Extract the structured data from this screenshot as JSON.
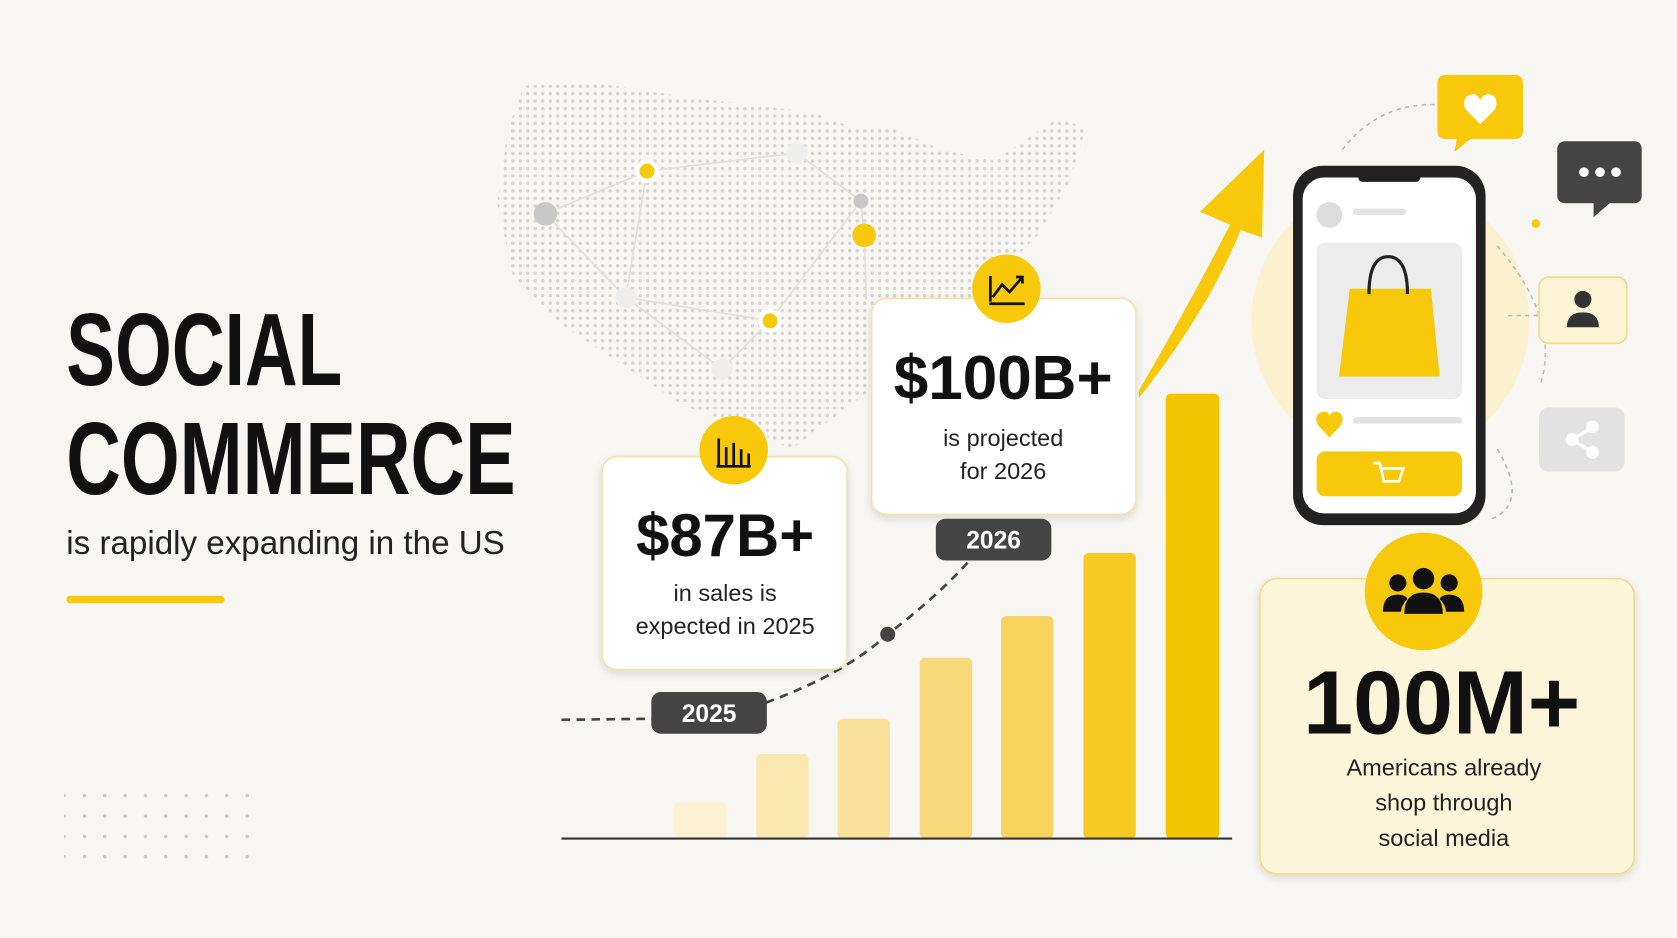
{
  "header": {
    "title_lines": [
      "SOCIAL",
      "COMMERCE"
    ],
    "subtitle": "is rapidly expanding in the US"
  },
  "stats": [
    {
      "value": "$87B+",
      "description_lines": [
        "in sales is",
        "expected in 2025"
      ],
      "year": "2025"
    },
    {
      "value": "$100B+",
      "description_lines": [
        "is projected",
        "for 2026"
      ],
      "year": "2026"
    },
    {
      "value": "100M+",
      "description_lines": [
        "Americans already",
        "shop through",
        "social media"
      ]
    }
  ]
}
